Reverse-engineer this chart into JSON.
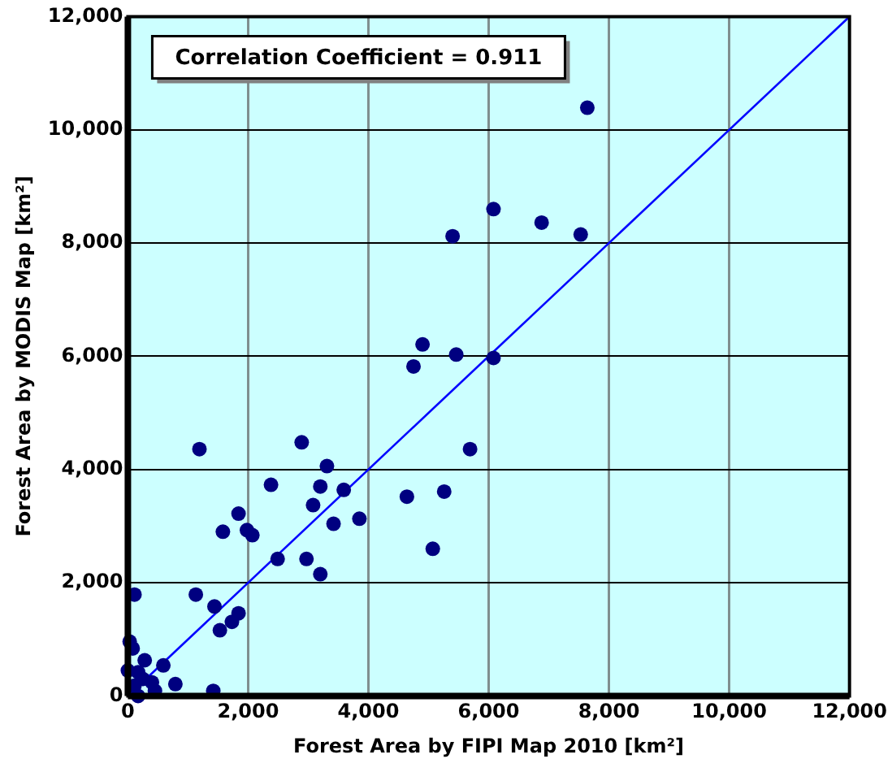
{
  "chart_data": {
    "type": "scatter",
    "xlabel": "Forest Area by FIPI Map 2010 [km²]",
    "ylabel": "Forest Area by MODIS Map [km²]",
    "annotations": [
      "Correlation Coefficient = 0.911"
    ],
    "xlim": [
      0,
      12000
    ],
    "ylim": [
      0,
      12000
    ],
    "xticks": [
      {
        "value": 0,
        "label": "0"
      },
      {
        "value": 2000,
        "label": "2,000"
      },
      {
        "value": 4000,
        "label": "4,000"
      },
      {
        "value": 6000,
        "label": "6,000"
      },
      {
        "value": 8000,
        "label": "8,000"
      },
      {
        "value": 10000,
        "label": "10,000"
      },
      {
        "value": 12000,
        "label": "12,000"
      }
    ],
    "yticks": [
      {
        "value": 0,
        "label": "0"
      },
      {
        "value": 2000,
        "label": "2,000"
      },
      {
        "value": 4000,
        "label": "4,000"
      },
      {
        "value": 6000,
        "label": "6,000"
      },
      {
        "value": 8000,
        "label": "8,000"
      },
      {
        "value": 10000,
        "label": "10,000"
      },
      {
        "value": 12000,
        "label": "12,000"
      }
    ],
    "grid": true,
    "legend": false,
    "marker": "circle",
    "series": [
      {
        "color": "#000080",
        "x": [
          7640,
          6080,
          6880,
          5400,
          7530,
          4900,
          5460,
          4750,
          6080,
          5690,
          4640,
          5260,
          5070,
          1190,
          2890,
          3310,
          2380,
          3200,
          3590,
          3080,
          3850,
          3420,
          1840,
          1580,
          1980,
          2070,
          2490,
          2970,
          3200,
          110,
          1130,
          1440,
          1840,
          1730,
          1530,
          30,
          80,
          280,
          590,
          0,
          170,
          790,
          400,
          1420,
          450,
          170,
          110,
          250
        ],
        "values": [
          10390,
          8600,
          8360,
          8120,
          8150,
          6210,
          6030,
          5820,
          5970,
          4360,
          3520,
          3610,
          2600,
          4360,
          4480,
          4060,
          3730,
          3700,
          3640,
          3370,
          3130,
          3040,
          3220,
          2900,
          2930,
          2840,
          2420,
          2420,
          2150,
          1790,
          1790,
          1580,
          1460,
          1310,
          1160,
          960,
          840,
          630,
          540,
          450,
          420,
          210,
          240,
          90,
          90,
          0,
          180,
          300
        ]
      },
      {
        "type": "line",
        "color": "#0000ff",
        "x": [
          0,
          12000
        ],
        "values": [
          0,
          12000
        ],
        "marker": "none"
      }
    ]
  }
}
